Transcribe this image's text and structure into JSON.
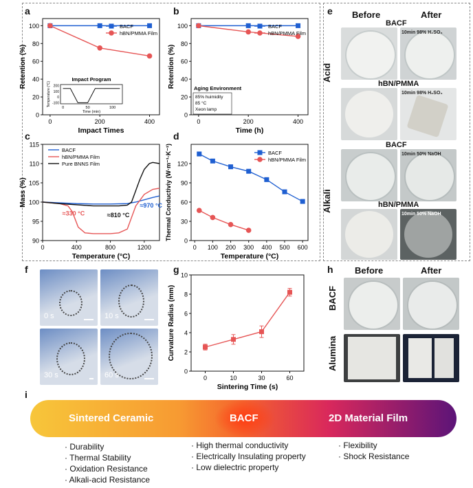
{
  "panel_letters": {
    "a": "a",
    "b": "b",
    "c": "c",
    "d": "d",
    "e": "e",
    "f": "f",
    "g": "g",
    "h": "h",
    "i": "i"
  },
  "colors": {
    "blue": "#1f5fd1",
    "red": "#e65555",
    "black": "#111111"
  },
  "chart_data": [
    {
      "id": "a",
      "type": "line",
      "xlabel": "Impact Times",
      "ylabel": "Retention (%)",
      "xlim": [
        -30,
        440
      ],
      "ylim": [
        0,
        108
      ],
      "xticks": [
        0,
        200,
        400
      ],
      "yticks": [
        0,
        20,
        40,
        60,
        80,
        100
      ],
      "legend": "top-right",
      "series": [
        {
          "name": "BACF",
          "color": "#1f5fd1",
          "marker": "square",
          "x": [
            0,
            200,
            400
          ],
          "y": [
            100,
            100,
            100
          ]
        },
        {
          "name": "hBN/PMMA Film",
          "color": "#e65555",
          "marker": "circle",
          "x": [
            0,
            200,
            400
          ],
          "y": [
            100,
            75,
            66
          ]
        }
      ],
      "inset": {
        "title": "Impact Program",
        "xlabel": "Time (min)",
        "ylabel": "Temperature (°C)",
        "xticks": [
          0,
          50,
          100
        ],
        "yticks": [
          -100,
          0,
          100,
          200
        ],
        "x": [
          0,
          15,
          30,
          50,
          65,
          80,
          115
        ],
        "y": [
          150,
          150,
          -100,
          -100,
          150,
          150,
          150
        ]
      }
    },
    {
      "id": "b",
      "type": "line",
      "xlabel": "Time (h)",
      "ylabel": "Retention (%)",
      "xlim": [
        -30,
        440
      ],
      "ylim": [
        0,
        108
      ],
      "xticks": [
        0,
        200,
        400
      ],
      "yticks": [
        0,
        20,
        40,
        60,
        80,
        100
      ],
      "legend": "top-right",
      "series": [
        {
          "name": "BACF",
          "color": "#1f5fd1",
          "marker": "square",
          "x": [
            0,
            200,
            400
          ],
          "y": [
            100,
            100,
            100
          ]
        },
        {
          "name": "hBN/PMMA Film",
          "color": "#e65555",
          "marker": "circle",
          "x": [
            0,
            200,
            400
          ],
          "y": [
            100,
            93,
            88
          ]
        }
      ],
      "annotation": {
        "title": "Aging Environment",
        "lines": [
          "85% huimidity",
          "85 °C",
          "Xeon lamp"
        ]
      }
    },
    {
      "id": "c",
      "type": "line",
      "xlabel": "Temperature (°C)",
      "ylabel": "Mass (%)",
      "xlim": [
        0,
        1380
      ],
      "ylim": [
        90,
        115
      ],
      "xticks": [
        0,
        400,
        800,
        1200
      ],
      "yticks": [
        90,
        95,
        100,
        105,
        110,
        115
      ],
      "legend": "top-left",
      "series": [
        {
          "name": "BACF",
          "color": "#1f5fd1",
          "x": [
            0,
            200,
            400,
            600,
            800,
            1000,
            1100,
            1200,
            1300,
            1380
          ],
          "y": [
            100,
            99.8,
            99.6,
            99.5,
            99.5,
            99.6,
            100,
            100.6,
            101.2,
            101.6
          ]
        },
        {
          "name": "hBN/PMMA Film",
          "color": "#e65555",
          "x": [
            0,
            200,
            300,
            350,
            420,
            500,
            600,
            700,
            800,
            900,
            1000,
            1050,
            1100,
            1200,
            1300,
            1380
          ],
          "y": [
            100,
            99.6,
            99,
            97.5,
            93.5,
            92,
            91.8,
            91.8,
            91.8,
            92,
            93,
            96,
            99,
            102,
            103.3,
            103.6
          ]
        },
        {
          "name": "Pure BNNS Film",
          "color": "#111111",
          "x": [
            0,
            200,
            400,
            600,
            800,
            900,
            1000,
            1050,
            1100,
            1150,
            1200,
            1260,
            1300,
            1380
          ],
          "y": [
            100,
            99.6,
            99.3,
            99,
            99,
            99,
            99.2,
            100,
            103,
            106,
            108.5,
            110,
            110.3,
            110
          ]
        }
      ],
      "annotations": [
        {
          "text": "≈330 °C",
          "color": "#e65555",
          "x": 330,
          "y": 98.7
        },
        {
          "text": "≈810 °C",
          "color": "#111111",
          "x": 810,
          "y": 98.6
        },
        {
          "text": "≈970 °C",
          "color": "#1f5fd1",
          "x": 970,
          "y": 99.1
        }
      ]
    },
    {
      "id": "d",
      "type": "line",
      "xlabel": "Temperature (°C)",
      "ylabel": "Thermal Conductiviy (W·m⁻¹·K⁻¹)",
      "xlim": [
        -20,
        630
      ],
      "ylim": [
        0,
        150
      ],
      "xticks": [
        0,
        100,
        200,
        300,
        400,
        500,
        600
      ],
      "yticks": [
        0,
        30,
        60,
        90,
        120
      ],
      "legend": "top-right",
      "series": [
        {
          "name": "BACF",
          "color": "#1f5fd1",
          "marker": "square",
          "x": [
            25,
            100,
            200,
            300,
            400,
            500,
            600
          ],
          "y": [
            135,
            124,
            115,
            108,
            95,
            76,
            61
          ]
        },
        {
          "name": "hBN/PMMA Film",
          "color": "#e65555",
          "marker": "circle",
          "x": [
            25,
            100,
            200,
            300
          ],
          "y": [
            47,
            36,
            25,
            16
          ]
        }
      ]
    },
    {
      "id": "g",
      "type": "line",
      "xlabel": "Sintering Time (s)",
      "ylabel": "Curvature Radius (mm)",
      "categories": [
        "0",
        "10",
        "30",
        "60"
      ],
      "ylim": [
        0,
        10
      ],
      "yticks": [
        0,
        2,
        4,
        6,
        8,
        10
      ],
      "series": [
        {
          "name": "",
          "color": "#e65555",
          "marker": "square",
          "y": [
            2.5,
            3.3,
            4.1,
            8.2
          ],
          "err": [
            0.3,
            0.5,
            0.6,
            0.4
          ]
        }
      ]
    }
  ],
  "panel_e": {
    "col_before": "Before",
    "col_after": "After",
    "row_acid": "Acid",
    "row_alkali": "Alkali",
    "tiles": [
      {
        "title": "BACF",
        "after_note": "10min 98% H₂SO₄"
      },
      {
        "title": "hBN/PMMA",
        "after_note": "10min 98% H₂SO₄"
      },
      {
        "title": "BACF",
        "after_note": "10min 50% NaOH"
      },
      {
        "title": "hBN/PMMA",
        "after_note": "10min 50% NaOH"
      }
    ]
  },
  "panel_f": {
    "times": [
      "0 s",
      "10 s",
      "30 s",
      "60 s"
    ]
  },
  "panel_h": {
    "col_before": "Before",
    "col_after": "After",
    "row_bacf": "BACF",
    "row_alumina": "Alumina"
  },
  "panel_i": {
    "left": "Sintered Ceramic",
    "center": "BACF",
    "right": "2D Material Film",
    "left_bullets": [
      "Durability",
      "Thermal Stability",
      "Oxidation Resistance",
      "Alkali-acid Resistance"
    ],
    "center_bullets": [
      "High thermal conductivity",
      "Electrically Insulating property",
      "Low dielectric property"
    ],
    "right_bullets": [
      "Flexibility",
      "Shock Resistance"
    ]
  }
}
